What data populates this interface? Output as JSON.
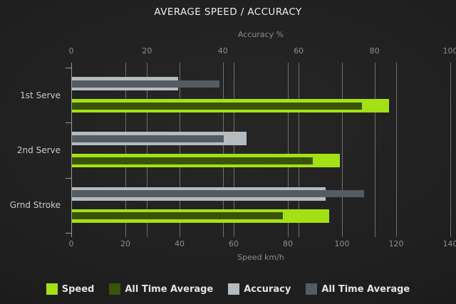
{
  "chart_data": {
    "type": "bar",
    "orientation": "horizontal",
    "title": "AVERAGE SPEED / ACCURACY",
    "categories": [
      "1st Serve",
      "2nd Serve",
      "Grnd Stroke"
    ],
    "series": [
      {
        "name": "Speed",
        "axis": "bottom",
        "color_key": "speed",
        "values": [
          117,
          99,
          95
        ]
      },
      {
        "name": "All Time Average",
        "axis": "bottom",
        "color_key": "speed_avg",
        "values": [
          107,
          89,
          78
        ]
      },
      {
        "name": "Accuracy",
        "axis": "top",
        "color_key": "accuracy",
        "values": [
          28,
          46,
          67
        ]
      },
      {
        "name": "All Time Average",
        "axis": "top",
        "color_key": "accuracy_avg",
        "values": [
          39,
          40,
          77
        ]
      }
    ],
    "top_axis": {
      "label": "Accuracy %",
      "min": 0,
      "max": 100,
      "ticks": [
        0,
        20,
        40,
        60,
        80,
        100
      ]
    },
    "bottom_axis": {
      "label": "Speed km/h",
      "min": 0,
      "max": 140,
      "ticks": [
        0,
        20,
        40,
        60,
        80,
        100,
        120,
        140
      ]
    },
    "grid": true,
    "legend_position": "bottom"
  },
  "legend": {
    "items": [
      {
        "label": "Speed",
        "color_key": "speed"
      },
      {
        "label": "All Time Average",
        "color_key": "speed_avg"
      },
      {
        "label": "Accuracy",
        "color_key": "accuracy"
      },
      {
        "label": "All Time Average",
        "color_key": "accuracy_avg"
      }
    ]
  },
  "colors": {
    "speed": "#a3e114",
    "speed_avg": "#3a530a",
    "accuracy": "#b6bbc0",
    "accuracy_avg": "#555b63",
    "gridline": "#6f6f6f",
    "axis": "#9a9a9a",
    "title_text": "#ededed",
    "muted_text": "#8d8d8d",
    "category_text": "#c9c9c9",
    "legend_text": "#e2e2e2"
  }
}
